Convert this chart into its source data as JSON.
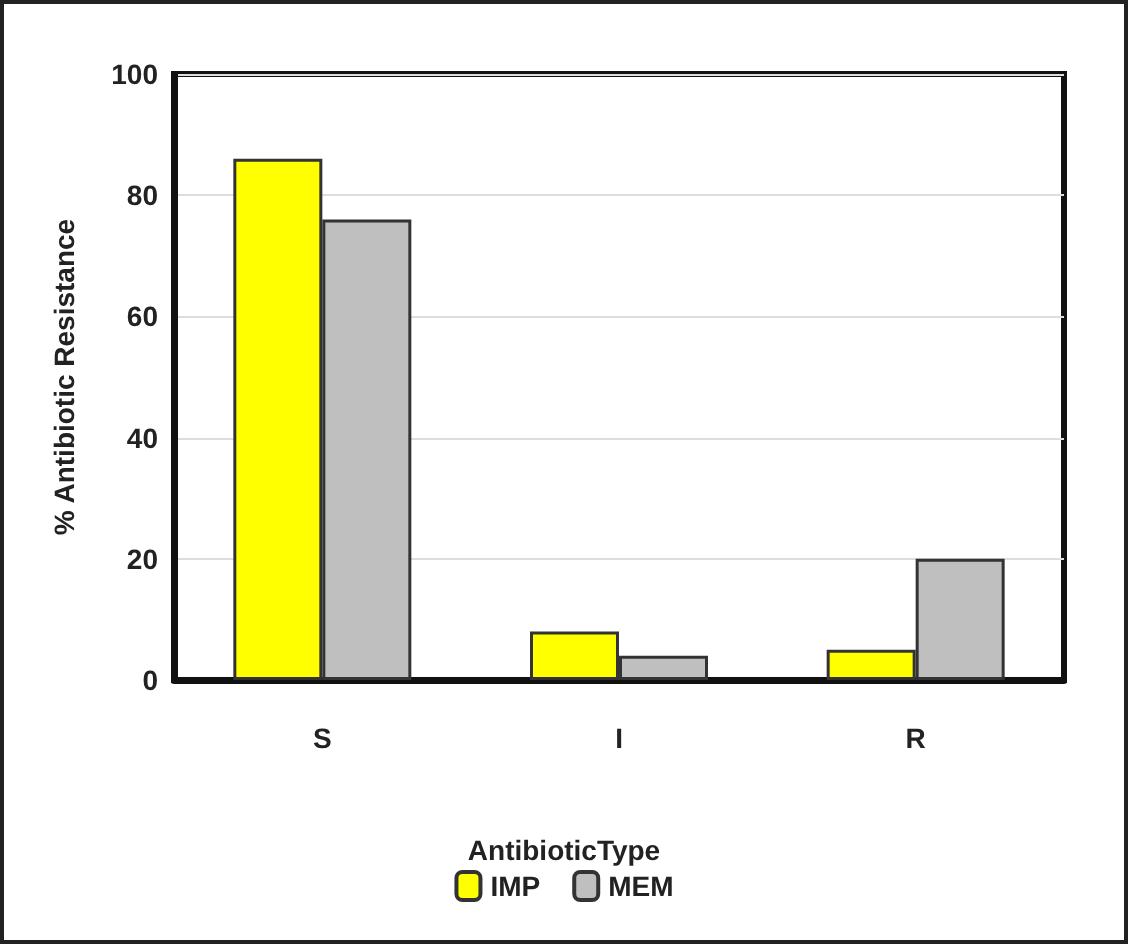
{
  "chart_data": {
    "type": "bar",
    "ylabel": "% Antibiotic Resistance",
    "legend_title": "AntibioticType",
    "categories": [
      "S",
      "I",
      "R"
    ],
    "series": [
      {
        "name": "IMP",
        "color": "#ffff00",
        "values": [
          86,
          8,
          5
        ]
      },
      {
        "name": "MEM",
        "color": "#bfbfbf",
        "values": [
          76,
          4,
          20
        ]
      }
    ],
    "ylim": [
      0,
      100
    ],
    "yticks": [
      0,
      20,
      40,
      60,
      80,
      100
    ],
    "grid": "y",
    "legend": "bottom"
  }
}
